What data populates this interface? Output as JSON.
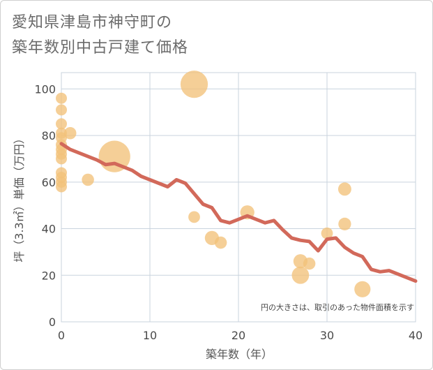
{
  "title_line1": "愛知県津島市神守町の",
  "title_line2": "築年数別中古戸建て価格",
  "chart_data": {
    "type": "scatter",
    "title": "愛知県津島市神守町の築年数別中古戸建て価格",
    "xlabel": "築年数（年）",
    "ylabel": "坪（3.3㎡）単価（万円）",
    "xlim": [
      0,
      40
    ],
    "ylim": [
      0,
      107
    ],
    "xticks": [
      0,
      10,
      20,
      30,
      40
    ],
    "yticks": [
      0,
      20,
      40,
      60,
      80,
      100
    ],
    "grid": true,
    "note": "円の大きさは、取引のあった物件面積を示す",
    "colors": {
      "bubble": "#f2c27a",
      "line": "#d2695a",
      "grid": "#c9d3de"
    },
    "bubbles": [
      {
        "x": 0,
        "y": 96,
        "size": 1
      },
      {
        "x": 0,
        "y": 91,
        "size": 1
      },
      {
        "x": 0,
        "y": 85,
        "size": 1
      },
      {
        "x": 0,
        "y": 81,
        "size": 1
      },
      {
        "x": 0,
        "y": 79,
        "size": 1
      },
      {
        "x": 0,
        "y": 76,
        "size": 1
      },
      {
        "x": 0,
        "y": 74,
        "size": 1
      },
      {
        "x": 0,
        "y": 72,
        "size": 1
      },
      {
        "x": 0,
        "y": 70,
        "size": 1
      },
      {
        "x": 0,
        "y": 64,
        "size": 1
      },
      {
        "x": 0,
        "y": 62,
        "size": 1
      },
      {
        "x": 0,
        "y": 60,
        "size": 1
      },
      {
        "x": 0,
        "y": 58,
        "size": 1
      },
      {
        "x": 1,
        "y": 81,
        "size": 1.2
      },
      {
        "x": 3,
        "y": 61,
        "size": 1.2
      },
      {
        "x": 6,
        "y": 71,
        "size": 8
      },
      {
        "x": 15,
        "y": 102,
        "size": 6
      },
      {
        "x": 15,
        "y": 45,
        "size": 1.1
      },
      {
        "x": 17,
        "y": 36,
        "size": 1.6
      },
      {
        "x": 18,
        "y": 34,
        "size": 1.2
      },
      {
        "x": 21,
        "y": 47,
        "size": 1.6
      },
      {
        "x": 27,
        "y": 26,
        "size": 1.6
      },
      {
        "x": 27,
        "y": 20,
        "size": 2.4
      },
      {
        "x": 28,
        "y": 25,
        "size": 1.2
      },
      {
        "x": 30,
        "y": 38,
        "size": 1.1
      },
      {
        "x": 32,
        "y": 57,
        "size": 1.4
      },
      {
        "x": 32,
        "y": 42,
        "size": 1.3
      },
      {
        "x": 34,
        "y": 14,
        "size": 2.1
      }
    ],
    "trend": {
      "x": [
        0,
        1,
        2,
        3,
        4,
        5,
        6,
        7,
        8,
        9,
        10,
        11,
        12,
        13,
        14,
        15,
        16,
        17,
        18,
        19,
        20,
        21,
        22,
        23,
        24,
        25,
        26,
        27,
        28,
        29,
        30,
        31,
        32,
        33,
        34,
        35,
        36,
        37,
        38,
        39,
        40
      ],
      "y": [
        76.5,
        74,
        72.5,
        71,
        69.5,
        67.5,
        68,
        66.5,
        65,
        62.5,
        61,
        59.5,
        58,
        61,
        59.5,
        55,
        50.5,
        49,
        43.5,
        42.5,
        44,
        45.5,
        44,
        42.5,
        43.5,
        39.5,
        36,
        35,
        34.5,
        30.5,
        35.5,
        36,
        32,
        29.5,
        28,
        22.5,
        21.5,
        22,
        20.5,
        19,
        17.5
      ]
    }
  }
}
